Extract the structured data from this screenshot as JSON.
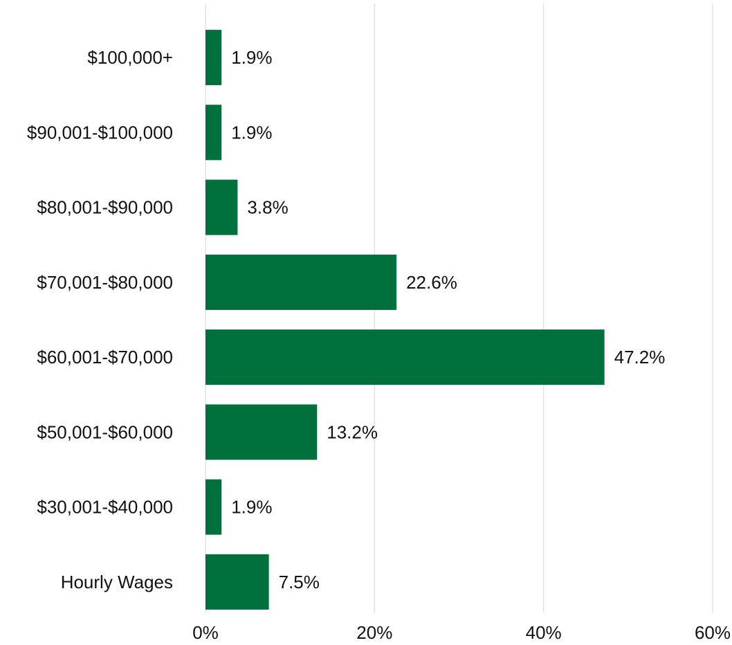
{
  "chart_data": {
    "type": "barh",
    "categories": [
      "$100,000+",
      "$90,001-$100,000",
      "$80,001-$90,000",
      "$70,001-$80,000",
      "$60,001-$70,000",
      "$50,001-$60,000",
      "$30,001-$40,000",
      "Hourly Wages"
    ],
    "values": [
      1.9,
      1.9,
      3.8,
      22.6,
      47.2,
      13.2,
      1.9,
      7.5
    ],
    "value_labels": [
      "1.9%",
      "1.9%",
      "3.8%",
      "22.6%",
      "47.2%",
      "13.2%",
      "1.9%",
      "7.5%"
    ],
    "color": "#00703c",
    "xlim": [
      0,
      60
    ],
    "xticks": [
      {
        "value": 0,
        "label": "0%"
      },
      {
        "value": 20,
        "label": "20%"
      },
      {
        "value": 40,
        "label": "40%"
      },
      {
        "value": 60,
        "label": "60%"
      }
    ],
    "grid": true
  }
}
